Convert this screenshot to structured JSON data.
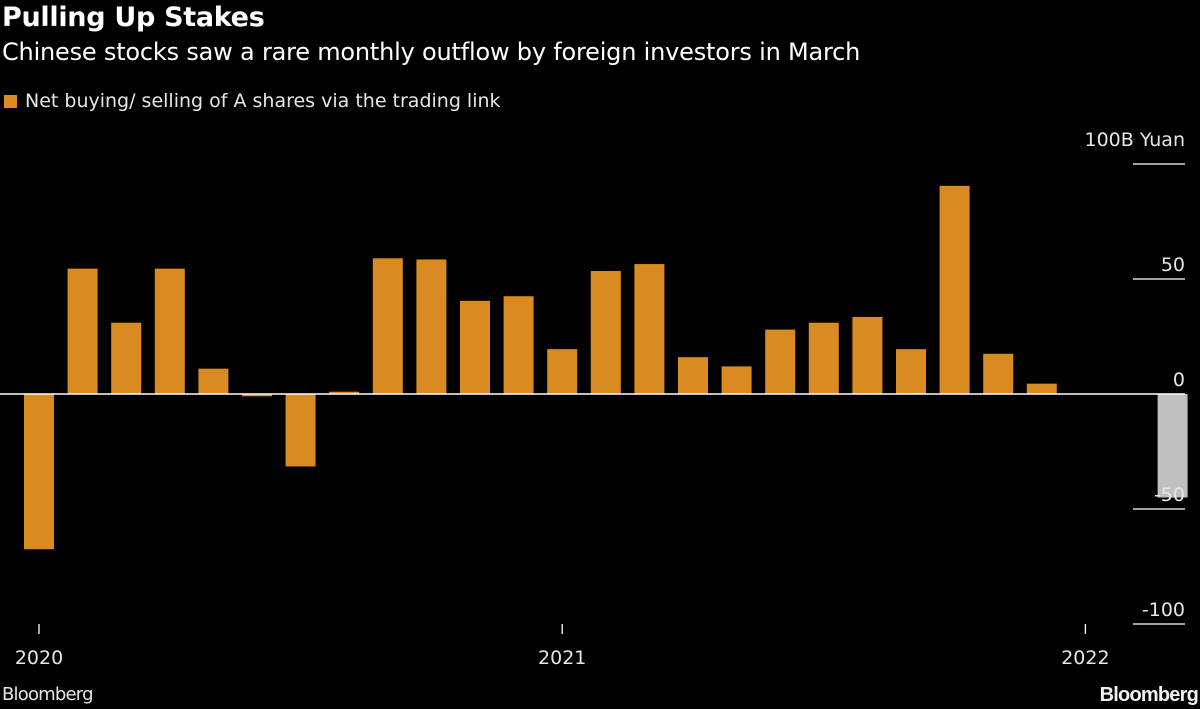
{
  "colors": {
    "background": "#000000",
    "bar": "#d98b22",
    "highlight_bar": "#c0c0c0",
    "axis": "#ffffff",
    "text": "#e6e6e6"
  },
  "footer": {
    "source": "Bloomberg",
    "logo": "Bloomberg"
  },
  "chart_data": {
    "type": "bar",
    "title": "Pulling Up Stakes",
    "subtitle": "Chinese stocks saw a rare monthly outflow by foreign investors in March",
    "legend": [
      "Net buying/ selling of A shares via the trading link"
    ],
    "y_unit_label": "100B Yuan",
    "y_axis_position": "right",
    "ylim": [
      -100,
      100
    ],
    "y_ticks": [
      100,
      50,
      0,
      -50,
      -100
    ],
    "y_tick_labels": [
      "",
      "50",
      "0",
      "-50",
      "-100"
    ],
    "x_ticks": [
      {
        "label": "2020",
        "category": "2020-01"
      },
      {
        "label": "2021",
        "category": "2021-01"
      },
      {
        "label": "2022",
        "category": "2022-01"
      }
    ],
    "categories": [
      "2020-01",
      "2020-02",
      "2020-03",
      "2020-04",
      "2020-05",
      "2020-06",
      "2020-07",
      "2020-08",
      "2020-09",
      "2020-10",
      "2020-11",
      "2020-12",
      "2021-01",
      "2021-02",
      "2021-03",
      "2021-04",
      "2021-05",
      "2021-06",
      "2021-07",
      "2021-08",
      "2021-09",
      "2021-10",
      "2021-11",
      "2021-12",
      "2022-01",
      "2022-02",
      "2022-03"
    ],
    "values": [
      -67.5,
      54.5,
      31,
      54.5,
      11,
      -1,
      -31.5,
      1,
      59,
      58.5,
      40.5,
      42.5,
      19.5,
      53.5,
      56.5,
      16,
      12,
      28,
      31,
      33.5,
      19.5,
      90.5,
      17.5,
      4.5,
      0,
      0,
      -45
    ],
    "highlight": [
      "2022-03"
    ]
  }
}
